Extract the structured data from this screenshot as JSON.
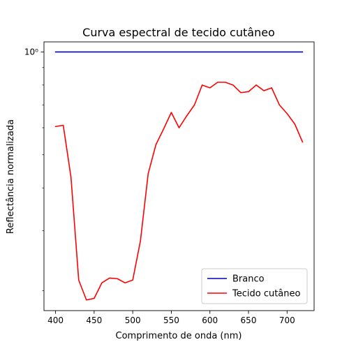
{
  "chart_data": {
    "type": "line",
    "title": "Curva espectral de tecido cutâneo",
    "xlabel": "Comprimento de onda (nm)",
    "ylabel": "Reflectância normalizada",
    "yscale": "log",
    "xlim": [
      385,
      735
    ],
    "ylim": [
      0.175,
      1.07
    ],
    "x_ticks": [
      400,
      450,
      500,
      550,
      600,
      650,
      700
    ],
    "y_ticks": [
      {
        "value": 1.0,
        "label": "10⁰"
      }
    ],
    "y_minor_ticks": [
      0.2,
      0.3,
      0.4,
      0.5,
      0.6,
      0.7,
      0.8,
      0.9
    ],
    "grid": false,
    "legend_position": "lower right",
    "series": [
      {
        "name": "Branco",
        "color": "#0000bf",
        "x": [
          400,
          720
        ],
        "y": [
          1.0,
          1.0
        ]
      },
      {
        "name": "Tecido cutâneo",
        "color": "#ff0000",
        "x": [
          400,
          410,
          420,
          430,
          440,
          450,
          460,
          470,
          480,
          490,
          500,
          510,
          520,
          530,
          540,
          550,
          560,
          570,
          580,
          590,
          600,
          610,
          620,
          630,
          640,
          650,
          660,
          670,
          680,
          690,
          700,
          710,
          720
        ],
        "y": [
          0.605,
          0.61,
          0.43,
          0.215,
          0.188,
          0.19,
          0.211,
          0.218,
          0.217,
          0.211,
          0.215,
          0.28,
          0.44,
          0.535,
          0.595,
          0.665,
          0.6,
          0.65,
          0.7,
          0.8,
          0.785,
          0.815,
          0.815,
          0.8,
          0.76,
          0.765,
          0.8,
          0.77,
          0.785,
          0.7,
          0.66,
          0.615,
          0.545
        ]
      }
    ]
  }
}
